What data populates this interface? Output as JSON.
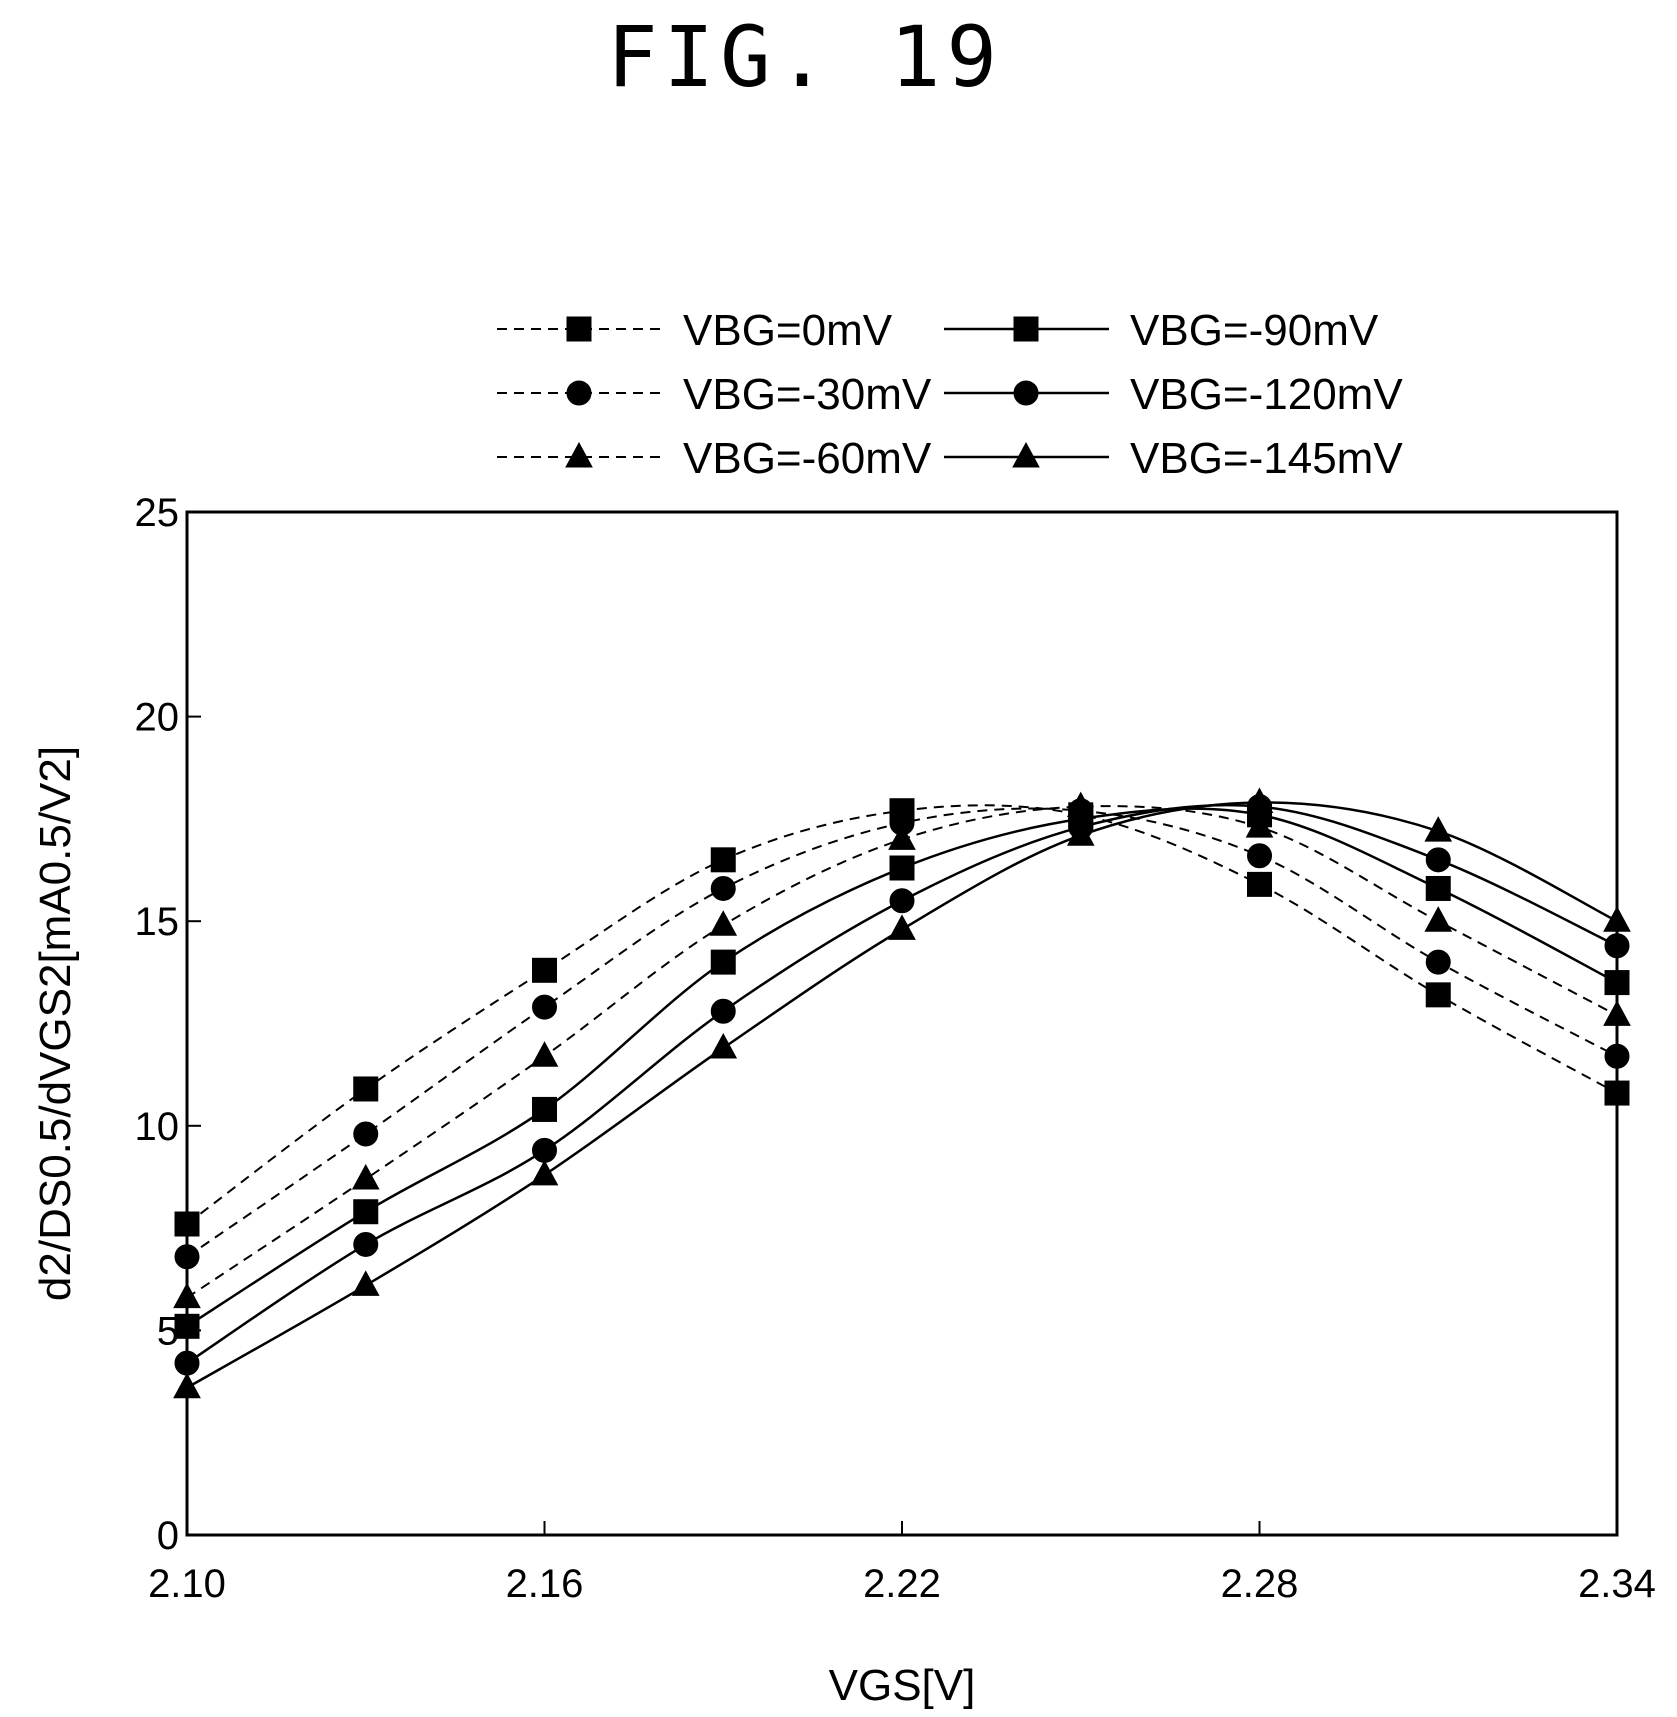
{
  "figure_title": "FIG. 19",
  "colors": {
    "ink": "#000000",
    "background": "#ffffff"
  },
  "chart_data": {
    "type": "line",
    "title": "",
    "xlabel": "VGS[V]",
    "ylabel": "d2/DS0.5/dVGS2[mA0.5/V2]",
    "xlim": [
      2.1,
      2.34
    ],
    "ylim": [
      0,
      25
    ],
    "x_ticks": [
      "2.10",
      "2.16",
      "2.22",
      "2.28",
      "2.34"
    ],
    "y_ticks": [
      "0",
      "5",
      "10",
      "15",
      "20",
      "25"
    ],
    "grid": false,
    "legend_position": "top",
    "x": [
      2.1,
      2.13,
      2.16,
      2.19,
      2.22,
      2.25,
      2.28,
      2.31,
      2.34
    ],
    "series": [
      {
        "name": "VBG=0mV",
        "marker": "square",
        "line": "dashed",
        "values": [
          7.6,
          10.9,
          13.8,
          16.5,
          17.7,
          17.6,
          15.9,
          13.2,
          10.8
        ]
      },
      {
        "name": "VBG=-30mV",
        "marker": "circle",
        "line": "dashed",
        "values": [
          6.8,
          9.8,
          12.9,
          15.8,
          17.4,
          17.7,
          16.6,
          14.0,
          11.7
        ]
      },
      {
        "name": "VBG=-60mV",
        "marker": "triangle",
        "line": "dashed",
        "values": [
          5.8,
          8.7,
          11.7,
          14.9,
          17.0,
          17.8,
          17.3,
          15.0,
          12.7
        ]
      },
      {
        "name": "VBG=-90mV",
        "marker": "square",
        "line": "solid",
        "values": [
          5.1,
          7.9,
          10.4,
          14.0,
          16.3,
          17.5,
          17.6,
          15.8,
          13.5
        ]
      },
      {
        "name": "VBG=-120mV",
        "marker": "circle",
        "line": "solid",
        "values": [
          4.2,
          7.1,
          9.4,
          12.8,
          15.5,
          17.3,
          17.8,
          16.5,
          14.4
        ]
      },
      {
        "name": "VBG=-145mV",
        "marker": "triangle",
        "line": "solid",
        "values": [
          3.6,
          6.1,
          8.8,
          11.9,
          14.8,
          17.1,
          17.9,
          17.2,
          15.0
        ]
      }
    ]
  }
}
